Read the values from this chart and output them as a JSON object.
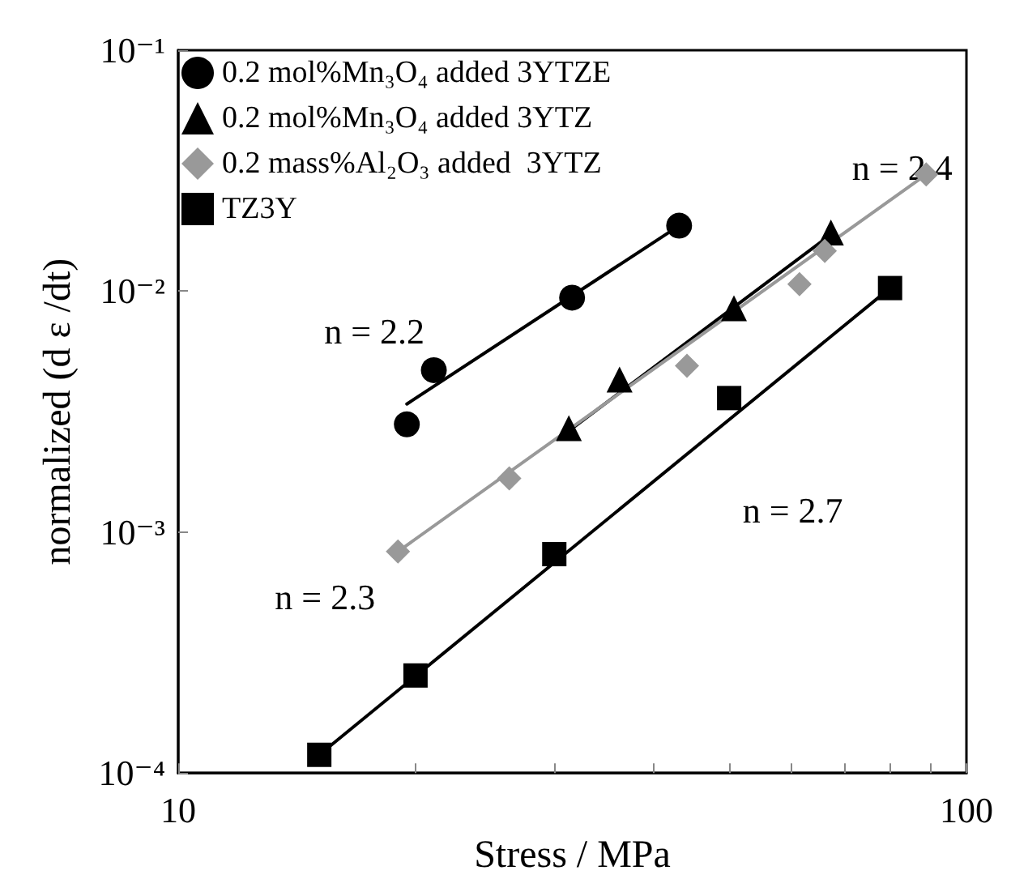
{
  "chart_data": {
    "type": "scatter",
    "xlabel": "Stress / MPa",
    "ylabel": "normalized (d ε /dt)",
    "log": "xy",
    "xlim": [
      10,
      100
    ],
    "xticks": [
      10,
      {
        "value": 20,
        "label": null
      },
      {
        "value": 30,
        "label": null
      },
      {
        "value": 40,
        "label": null
      },
      {
        "value": 50,
        "label": null
      },
      {
        "value": 60,
        "label": null
      },
      {
        "value": 70,
        "label": null
      },
      {
        "value": 80,
        "label": null
      },
      {
        "value": 90,
        "label": null
      },
      100
    ],
    "ylim": [
      0.0001,
      0.1
    ],
    "yticks": [
      {
        "value": 0.0001,
        "label": "10⁻⁴"
      },
      {
        "value": 0.001,
        "label": "10⁻³"
      },
      {
        "value": 0.01,
        "label": "10⁻²"
      },
      {
        "value": 0.1,
        "label": "10⁻¹"
      }
    ],
    "grid": false,
    "legend": "top left",
    "series": [
      {
        "name": "0.2 mol%Mn₃O₄ added 3YTZE",
        "color": "#000000",
        "marker": "circle",
        "x": [
          19.5,
          21.1,
          31.6,
          43.2
        ],
        "values": [
          0.0028,
          0.0047,
          0.0094,
          0.0187
        ]
      },
      {
        "name": "0.2 mol%Mn₃O₄ added 3YTZ",
        "color": "#000000",
        "marker": "triangle",
        "x": [
          31.3,
          36.3,
          50.7,
          67.3
        ],
        "values": [
          0.0027,
          0.0043,
          0.0085,
          0.0175
        ]
      },
      {
        "name": "0.2 mass%Al₂O₃ added  3YTZ",
        "color": "#999999",
        "marker": "diamond",
        "x": [
          19.0,
          26.3,
          44.2,
          61.4,
          66.1,
          88.9
        ],
        "values": [
          0.00083,
          0.00167,
          0.0049,
          0.0107,
          0.0147,
          0.0305
        ]
      },
      {
        "name": "TZ3Y",
        "color": "#000000",
        "marker": "square",
        "x": [
          15.1,
          20.0,
          30.0,
          50.0,
          80.0
        ],
        "values": [
          0.000119,
          0.000254,
          0.00081,
          0.0036,
          0.0103
        ]
      },
      {
        "type": "line",
        "color": "#000000",
        "marker": "none",
        "x": [
          19.5,
          43.2
        ],
        "values": [
          0.0034,
          0.0187
        ]
      },
      {
        "type": "line",
        "color": "#000000",
        "marker": "none",
        "x": [
          30.3,
          67.0
        ],
        "values": [
          0.00243,
          0.017
        ]
      },
      {
        "type": "line",
        "color": "#999999",
        "marker": "none",
        "x": [
          19.0,
          88.9
        ],
        "values": [
          0.00083,
          0.0305
        ]
      },
      {
        "type": "line",
        "color": "#000000",
        "marker": "none",
        "x": [
          15.1,
          80.0
        ],
        "values": [
          0.000119,
          0.0103
        ]
      }
    ],
    "annotations": [
      "n = 2.2",
      "n = 2.4",
      "n = 2.3",
      "n = 2.7"
    ]
  }
}
